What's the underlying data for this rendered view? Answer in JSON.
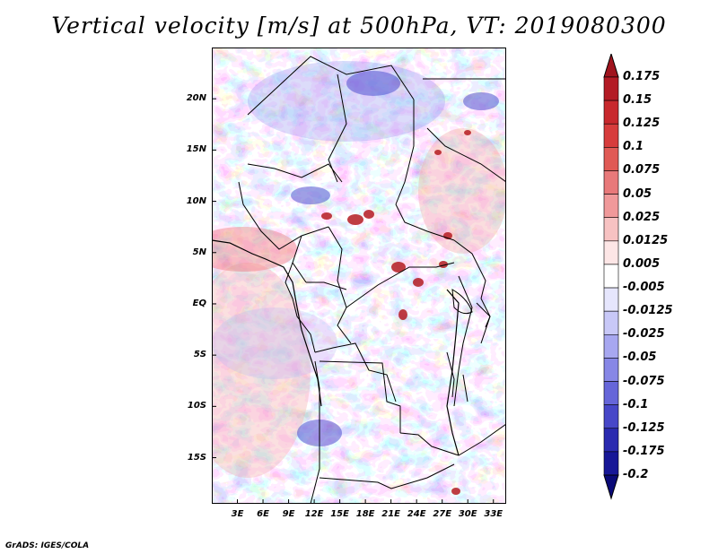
{
  "title": "Vertical velocity [m/s] at 500hPa, VT: 2019080300",
  "footer": "GrADS: IGES/COLA",
  "map": {
    "lat_labels": [
      "20N",
      "15N",
      "10N",
      "5N",
      "EQ",
      "5S",
      "10S",
      "15S"
    ],
    "lat_values": [
      20,
      15,
      10,
      5,
      0,
      -5,
      -10,
      -15
    ],
    "lon_labels": [
      "3E",
      "6E",
      "9E",
      "12E",
      "15E",
      "18E",
      "21E",
      "24E",
      "27E",
      "30E",
      "33E"
    ],
    "lon_values": [
      3,
      6,
      9,
      12,
      15,
      18,
      21,
      24,
      27,
      30,
      33
    ],
    "lon_range": [
      0,
      34.5
    ],
    "lat_range": [
      -19.5,
      25
    ],
    "variable": "vertical velocity",
    "level": "500hPa",
    "valid_time": "2019080300"
  },
  "colorbar": {
    "labels": [
      "0.175",
      "0.15",
      "0.125",
      "0.1",
      "0.075",
      "0.05",
      "0.025",
      "0.0125",
      "0.005",
      "-0.005",
      "-0.0125",
      "-0.025",
      "-0.05",
      "-0.075",
      "-0.1",
      "-0.125",
      "-0.175",
      "-0.2"
    ],
    "colors": [
      "#a0141e",
      "#b31b25",
      "#c8282d",
      "#d73c3c",
      "#e05a55",
      "#e8797a",
      "#f0999a",
      "#f7c2c2",
      "#fde6e6",
      "#ffffff",
      "#e6e6fd",
      "#c8c8f7",
      "#a7a7f0",
      "#8787e6",
      "#6666d9",
      "#4747c8",
      "#2a2ab0",
      "#171797",
      "#0a0a78"
    ]
  }
}
